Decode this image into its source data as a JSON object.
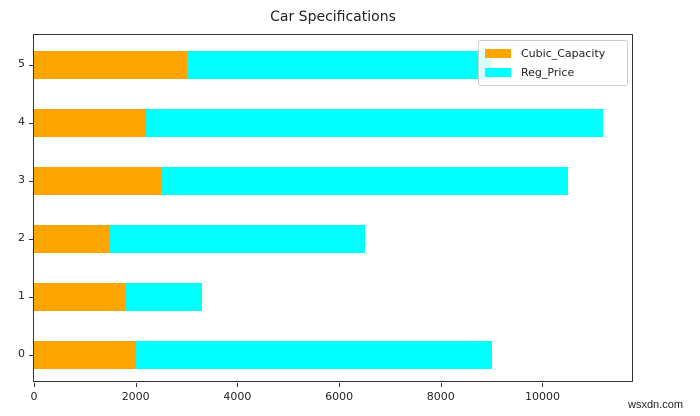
{
  "chart_data": {
    "type": "bar",
    "orientation": "horizontal",
    "stacked": true,
    "title": "Car Specifications",
    "xlabel": "",
    "ylabel": "",
    "categories": [
      "0",
      "1",
      "2",
      "3",
      "4",
      "5"
    ],
    "series": [
      {
        "name": "Cubic_Capacity",
        "color": "#FFA500",
        "values": [
          2000,
          1800,
          1500,
          2500,
          2200,
          3000
        ]
      },
      {
        "name": "Reg_Price",
        "color": "#00FFFF",
        "values": [
          7000,
          1500,
          5000,
          8000,
          9000,
          6000
        ]
      }
    ],
    "stack_totals": [
      9000,
      3300,
      6500,
      10500,
      11200,
      9000
    ],
    "xlim": [
      0,
      11800
    ],
    "xticks": [
      0,
      2000,
      4000,
      6000,
      8000,
      10000
    ],
    "xtick_labels": [
      "0",
      "2000",
      "4000",
      "6000",
      "8000",
      "10000"
    ],
    "yticks": [
      "0",
      "1",
      "2",
      "3",
      "4",
      "5"
    ],
    "grid": false,
    "legend_position": "upper right"
  },
  "legend": {
    "items": [
      {
        "label": "Cubic_Capacity",
        "color": "#FFA500"
      },
      {
        "label": "Reg_Price",
        "color": "#00FFFF"
      }
    ]
  },
  "watermark": "wsxdn.com"
}
